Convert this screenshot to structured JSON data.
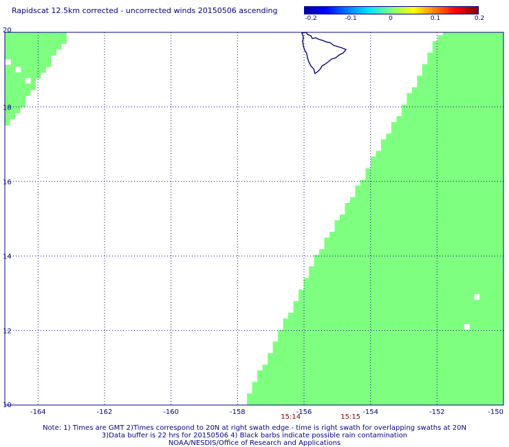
{
  "title": "Rapidscat 12.5km corrected - uncorrected winds 20150506 ascending",
  "colorbar": {
    "ticks": [
      "-0.2",
      "-0.1",
      "0",
      "0.1",
      "0.2"
    ],
    "colors": [
      "#0000a0",
      "#0000ff",
      "#0080ff",
      "#00e5ff",
      "#7fff7f",
      "#ffff00",
      "#ff8000",
      "#ff0000",
      "#800000"
    ]
  },
  "chart_data": {
    "type": "heatmap",
    "title": "Rapidscat 12.5km corrected - uncorrected winds 20150506 ascending",
    "xlim": [
      -165,
      -150
    ],
    "ylim": [
      10,
      20
    ],
    "x_ticks": [
      "-164",
      "-162",
      "-160",
      "-158",
      "-156",
      "-154",
      "-152",
      "-150"
    ],
    "y_ticks": [
      "10",
      "12",
      "14",
      "16",
      "18",
      "20"
    ],
    "grid": true,
    "fill_color": "#7fff7f",
    "swath_main": {
      "edge_lon_at_lat": [
        [
          -157.8,
          10.0
        ],
        [
          -155.6,
          14.0
        ],
        [
          -153.0,
          18.0
        ],
        [
          -151.9,
          20.0
        ]
      ],
      "right_lon": -150
    },
    "swath_corner": {
      "top_edge": [
        -165,
        -163.1,
        20.0
      ],
      "tip": [
        -164.9,
        17.5
      ]
    },
    "missing_cells": [
      [
        -150.8,
        12.9
      ],
      [
        -151.1,
        12.1
      ],
      [
        -164.9,
        19.2
      ],
      [
        -164.6,
        19.0
      ],
      [
        -164.3,
        18.7
      ]
    ],
    "times": [
      {
        "label": "15:14",
        "lon": -156.4
      },
      {
        "label": "15:15",
        "lon": -154.6
      }
    ]
  },
  "notes": [
    "Note: 1) Times are GMT 2)Times correspond to 20N at right swath edge - time is right swath for overlapping swaths at 20N",
    "3)Data buffer is 22 hrs for 20150506 4) Black barbs indicate possible rain contamination",
    "NOAA/NESDIS/Office of Research and Applications"
  ]
}
